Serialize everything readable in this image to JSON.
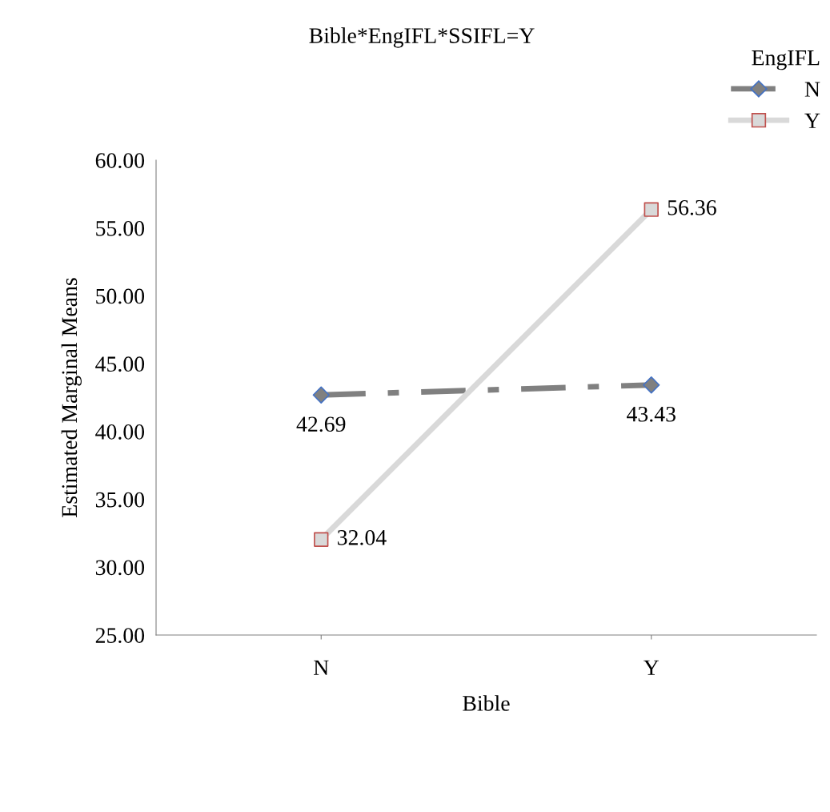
{
  "chart_data": {
    "type": "line",
    "title": "Bible*EngIFL*SSIFL=Y",
    "xlabel": "Bible",
    "ylabel": "Estimated Marginal Means",
    "legend_title": "EngIFL",
    "categories": [
      "N",
      "Y"
    ],
    "series": [
      {
        "name": "N",
        "color": "#808080",
        "values": [
          42.69,
          43.43
        ],
        "marker": "diamond",
        "line_style": "dashed"
      },
      {
        "name": "Y",
        "color": "#d9d9d9",
        "values": [
          32.04,
          56.36
        ],
        "marker": "square",
        "line_style": "solid"
      }
    ],
    "ylim": [
      25,
      60
    ],
    "yticks": [
      {
        "value": 25,
        "label": "25.00"
      },
      {
        "value": 30,
        "label": "30.00"
      },
      {
        "value": 35,
        "label": "35.00"
      },
      {
        "value": 40,
        "label": "40.00"
      },
      {
        "value": 45,
        "label": "45.00"
      },
      {
        "value": 50,
        "label": "50.00"
      },
      {
        "value": 55,
        "label": "55.00"
      },
      {
        "value": 60,
        "label": "60.00"
      }
    ],
    "data_labels": true,
    "grid": false,
    "legend": "top right"
  }
}
